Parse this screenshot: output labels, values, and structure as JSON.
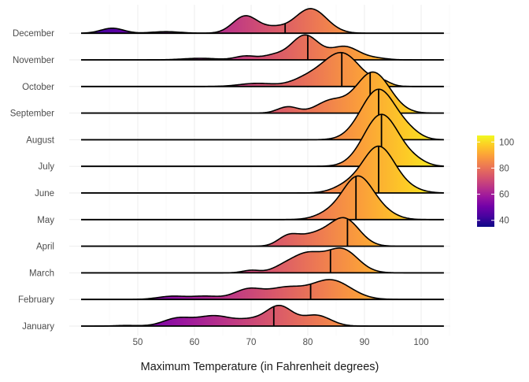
{
  "chart_data": {
    "type": "ridgeline",
    "title": "",
    "xlabel": "Maximum Temperature (in Fahrenheit degrees)",
    "ylabel": "",
    "xlim": [
      35,
      105
    ],
    "x_ticks": [
      50,
      60,
      70,
      80,
      90,
      100
    ],
    "grid": true,
    "color_scale": {
      "name": "plasma",
      "domain": [
        35,
        105
      ],
      "legend_ticks": [
        40,
        60,
        80,
        100
      ],
      "stops": [
        "#0d0887",
        "#46039f",
        "#7201a8",
        "#9c179e",
        "#bd3786",
        "#d8576b",
        "#ed7953",
        "#fb9f3a",
        "#fdca26",
        "#f0f921"
      ],
      "legend_position": "right"
    },
    "categories": [
      "January",
      "February",
      "March",
      "April",
      "May",
      "June",
      "July",
      "August",
      "September",
      "October",
      "November",
      "December"
    ],
    "series": [
      {
        "name": "January",
        "median": 74,
        "peaks": [
          [
            57,
            0.24,
            2.5
          ],
          [
            63.5,
            0.32,
            3
          ],
          [
            70,
            0.18,
            2.5
          ],
          [
            75,
            0.62,
            2.3
          ],
          [
            81.5,
            0.34,
            2.5
          ],
          [
            48,
            0.02,
            2
          ]
        ]
      },
      {
        "name": "February",
        "median": 80.5,
        "peaks": [
          [
            56,
            0.1,
            2.5
          ],
          [
            62,
            0.1,
            2.5
          ],
          [
            69.5,
            0.32,
            2.5
          ],
          [
            76,
            0.35,
            3
          ],
          [
            84,
            0.62,
            3.5
          ]
        ]
      },
      {
        "name": "March",
        "median": 84,
        "peaks": [
          [
            70,
            0.08,
            1.5
          ],
          [
            76,
            0.2,
            2.2
          ],
          [
            80,
            0.55,
            2.5
          ],
          [
            86,
            0.75,
            2.8
          ]
        ]
      },
      {
        "name": "April",
        "median": 87,
        "peaks": [
          [
            76.5,
            0.28,
            1.8
          ],
          [
            81,
            0.35,
            2.8
          ],
          [
            86.5,
            0.85,
            2.6
          ]
        ]
      },
      {
        "name": "May",
        "median": 88.5,
        "peaks": [
          [
            84,
            0.2,
            2.5
          ],
          [
            88.8,
            1.3,
            2.6
          ],
          [
            93,
            0.22,
            2.5
          ]
        ]
      },
      {
        "name": "June",
        "median": 92.5,
        "peaks": [
          [
            87,
            0.22,
            2.5
          ],
          [
            92.5,
            1.45,
            2.8
          ],
          [
            97.5,
            0.12,
            2.5
          ]
        ]
      },
      {
        "name": "July",
        "median": 93,
        "peaks": [
          [
            93,
            1.65,
            3.1
          ],
          [
            99,
            0.12,
            2
          ]
        ]
      },
      {
        "name": "August",
        "median": 92.5,
        "peaks": [
          [
            92.5,
            1.6,
            3.1
          ],
          [
            98,
            0.15,
            2
          ]
        ]
      },
      {
        "name": "September",
        "median": 91,
        "peaks": [
          [
            76.5,
            0.2,
            1.8
          ],
          [
            84,
            0.38,
            2.5
          ],
          [
            91.5,
            1.3,
            3
          ]
        ]
      },
      {
        "name": "October",
        "median": 86,
        "peaks": [
          [
            71,
            0.1,
            3
          ],
          [
            80,
            0.25,
            2.8
          ],
          [
            86,
            1.05,
            3.2
          ],
          [
            93,
            0.15,
            1.5
          ]
        ]
      },
      {
        "name": "November",
        "median": 80,
        "peaks": [
          [
            61,
            0.05,
            3
          ],
          [
            69,
            0.12,
            1.8
          ],
          [
            74,
            0.14,
            2
          ],
          [
            79.5,
            0.78,
            2.4
          ],
          [
            86.5,
            0.42,
            2.5
          ],
          [
            92,
            0.05,
            2
          ]
        ]
      },
      {
        "name": "December",
        "median": 76,
        "peaks": [
          [
            45.5,
            0.16,
            2
          ],
          [
            55,
            0.05,
            2.5
          ],
          [
            69,
            0.55,
            2.2
          ],
          [
            74,
            0.15,
            2
          ],
          [
            80.5,
            0.78,
            2.8
          ]
        ]
      }
    ]
  }
}
